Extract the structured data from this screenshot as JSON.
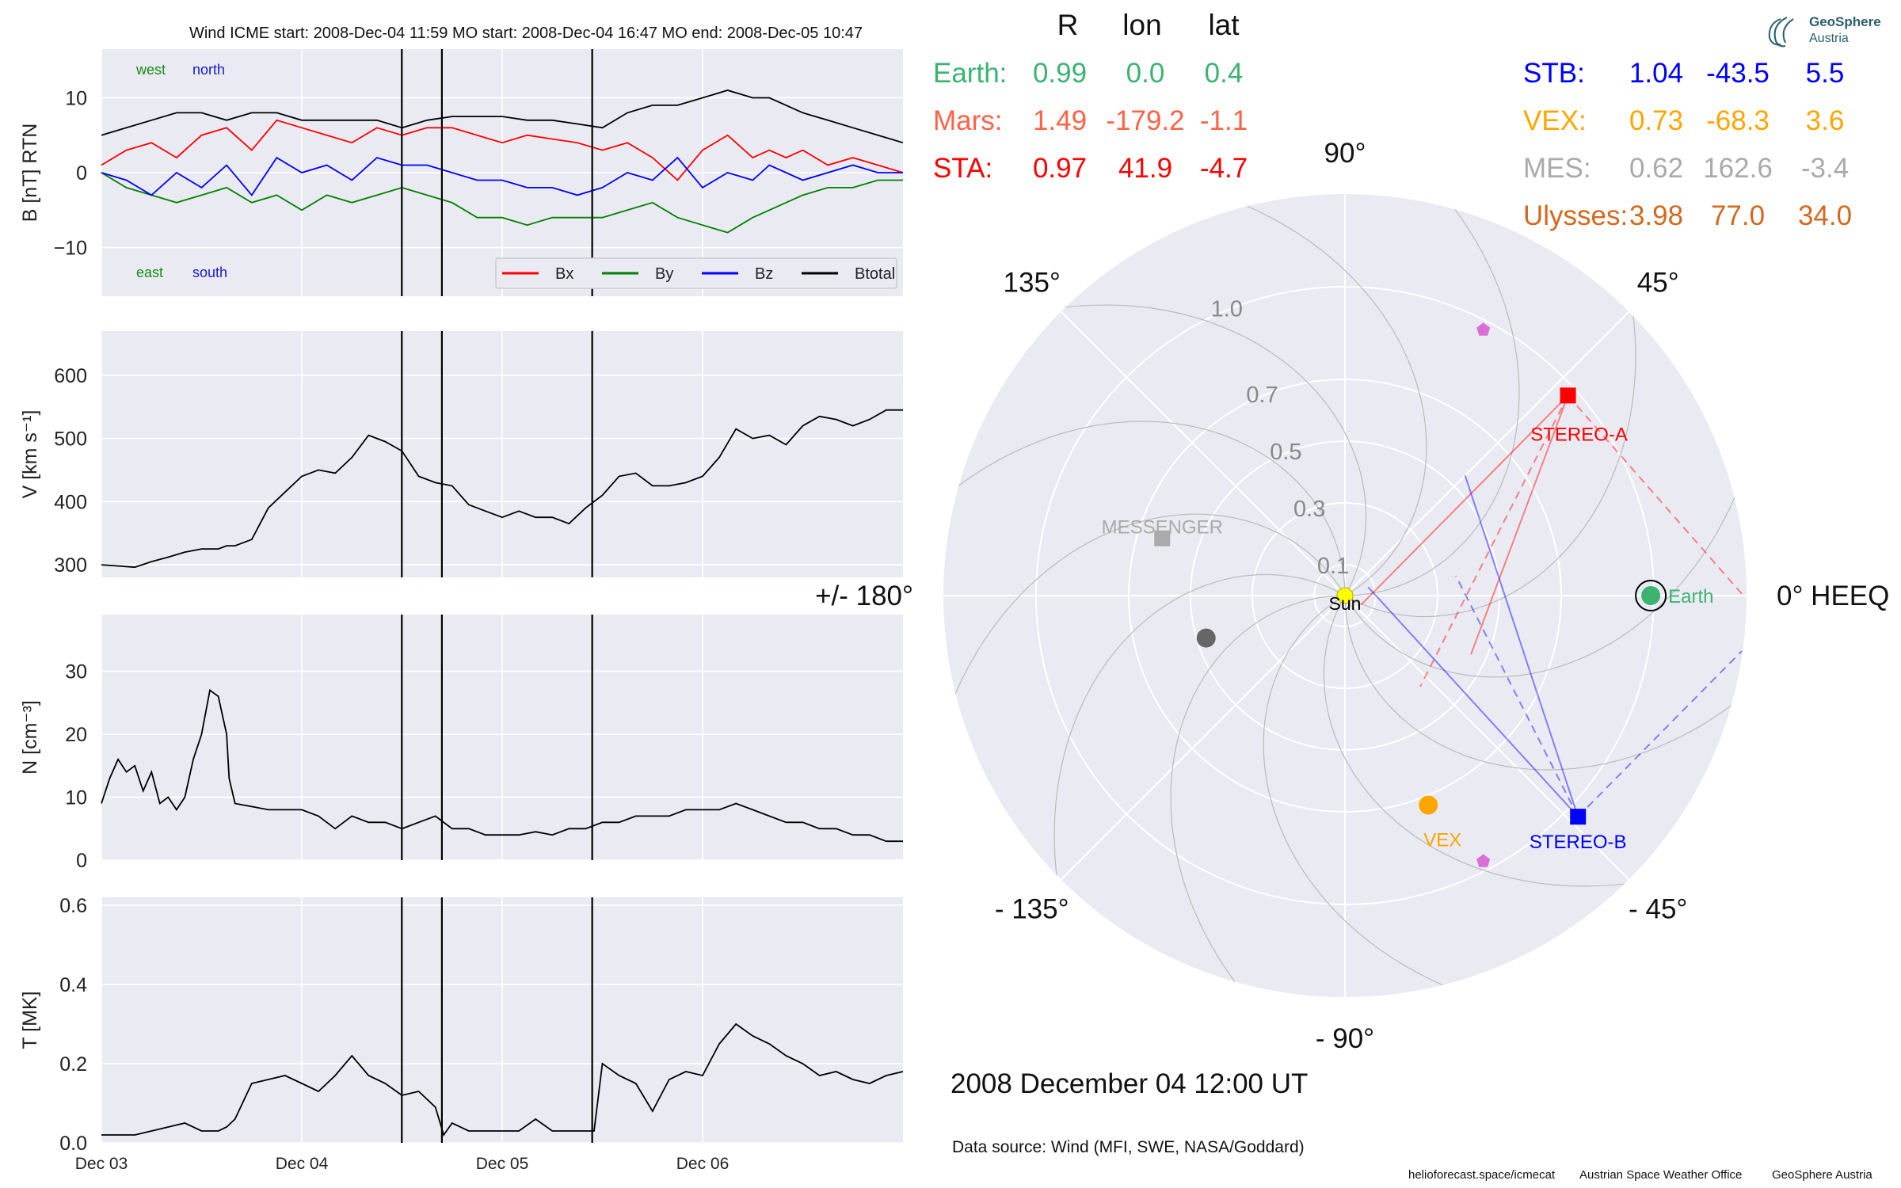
{
  "chart_data": [
    {
      "type": "line",
      "title": "Wind    ICME start: 2008-Dec-04 11:59   MO start: 2008-Dec-04 16:47   MO end: 2008-Dec-05 10:47",
      "ylabel": "B [nT] RTN",
      "ylim": [
        -16.5,
        16.5
      ],
      "yticks": [
        -10,
        0,
        10
      ],
      "ytick_labels": [
        "−10",
        "0",
        "10"
      ],
      "annotations": [
        {
          "text": "west",
          "color": "#1a8a1a",
          "pos": "top-left"
        },
        {
          "text": "north",
          "color": "#1a1acc",
          "pos": "top-left"
        },
        {
          "text": "east",
          "color": "#1a8a1a",
          "pos": "bottom-left"
        },
        {
          "text": "south",
          "color": "#1a1acc",
          "pos": "bottom-left"
        }
      ],
      "legend": {
        "placement": "bottom-right",
        "entries": [
          {
            "name": "Bx",
            "color": "#ff0000"
          },
          {
            "name": "By",
            "color": "#008000"
          },
          {
            "name": "Bz",
            "color": "#0000ff"
          },
          {
            "name": "Btotal",
            "color": "#000000"
          }
        ]
      },
      "event_lines_hours": [
        35.98,
        40.78,
        58.78
      ],
      "series": [
        {
          "name": "Btotal",
          "color": "#000000",
          "x": [
            0,
            3,
            6,
            9,
            12,
            15,
            18,
            21,
            24,
            27,
            30,
            33,
            36,
            39,
            42,
            45,
            48,
            51,
            54,
            57,
            60,
            63,
            66,
            69,
            72,
            75,
            78,
            80,
            82,
            84,
            87,
            90,
            93,
            96
          ],
          "y": [
            5,
            6,
            7,
            8,
            8,
            7,
            8,
            8,
            7,
            7,
            7,
            7,
            6,
            7,
            7.5,
            7.5,
            7.5,
            7,
            7,
            6.5,
            6,
            8,
            9,
            9,
            10,
            11,
            10,
            10,
            9,
            8,
            7,
            6,
            5,
            4
          ]
        },
        {
          "name": "Bx",
          "color": "#ff0000",
          "x": [
            0,
            3,
            6,
            9,
            12,
            15,
            18,
            21,
            24,
            27,
            30,
            33,
            36,
            39,
            42,
            45,
            48,
            51,
            54,
            57,
            60,
            63,
            66,
            69,
            72,
            75,
            78,
            80,
            82,
            84,
            87,
            90,
            93,
            96
          ],
          "y": [
            1,
            3,
            4,
            2,
            5,
            6,
            3,
            7,
            6,
            5,
            4,
            6,
            5,
            6,
            6,
            5,
            4,
            5,
            4.5,
            4,
            3,
            4,
            2,
            -1,
            3,
            5,
            2,
            3,
            2,
            3,
            1,
            2,
            1,
            0
          ]
        },
        {
          "name": "By",
          "color": "#008000",
          "x": [
            0,
            3,
            6,
            9,
            12,
            15,
            18,
            21,
            24,
            27,
            30,
            33,
            36,
            39,
            42,
            45,
            48,
            51,
            54,
            57,
            60,
            63,
            66,
            69,
            72,
            75,
            78,
            80,
            82,
            84,
            87,
            90,
            93,
            96
          ],
          "y": [
            0,
            -2,
            -3,
            -4,
            -3,
            -2,
            -4,
            -3,
            -5,
            -3,
            -4,
            -3,
            -2,
            -3,
            -4,
            -6,
            -6,
            -7,
            -6,
            -6,
            -6,
            -5,
            -4,
            -6,
            -7,
            -8,
            -6,
            -5,
            -4,
            -3,
            -2,
            -2,
            -1,
            -1
          ]
        },
        {
          "name": "Bz",
          "color": "#0000ff",
          "x": [
            0,
            3,
            6,
            9,
            12,
            15,
            18,
            21,
            24,
            27,
            30,
            33,
            36,
            39,
            42,
            45,
            48,
            51,
            54,
            57,
            60,
            63,
            66,
            69,
            72,
            75,
            78,
            80,
            82,
            84,
            87,
            90,
            93,
            96
          ],
          "y": [
            0,
            -1,
            -3,
            0,
            -2,
            1,
            -3,
            2,
            0,
            1,
            -1,
            2,
            1,
            1,
            0,
            -1,
            -1,
            -2,
            -2,
            -3,
            -2,
            0,
            -1,
            2,
            -2,
            0,
            -1,
            1,
            0,
            -1,
            0,
            1,
            0,
            0
          ]
        }
      ]
    },
    {
      "type": "line",
      "ylabel": "V [km s⁻¹]",
      "ylim": [
        280,
        670
      ],
      "yticks": [
        300,
        400,
        500,
        600
      ],
      "ytick_labels": [
        "300",
        "400",
        "500",
        "600"
      ],
      "event_lines_hours": [
        35.98,
        40.78,
        58.78
      ],
      "series": [
        {
          "name": "V",
          "color": "#000000",
          "x": [
            0,
            2,
            4,
            6,
            8,
            10,
            12,
            14,
            15,
            16,
            18,
            20,
            22,
            24,
            26,
            28,
            30,
            32,
            34,
            36,
            38,
            40,
            42,
            44,
            46,
            48,
            50,
            52,
            54,
            56,
            58,
            60,
            62,
            64,
            66,
            68,
            70,
            72,
            74,
            76,
            78,
            80,
            82,
            84,
            86,
            88,
            90,
            92,
            94,
            96
          ],
          "y": [
            300,
            298,
            296,
            305,
            312,
            320,
            325,
            325,
            330,
            330,
            340,
            390,
            415,
            440,
            450,
            445,
            470,
            505,
            495,
            480,
            440,
            430,
            425,
            395,
            385,
            375,
            385,
            375,
            375,
            365,
            390,
            410,
            440,
            445,
            425,
            425,
            430,
            440,
            470,
            515,
            500,
            505,
            490,
            520,
            535,
            530,
            520,
            530,
            545,
            545
          ]
        }
      ]
    },
    {
      "type": "line",
      "ylabel": "N [cm⁻³]",
      "ylim": [
        0,
        39
      ],
      "yticks": [
        0,
        10,
        20,
        30
      ],
      "ytick_labels": [
        "0",
        "10",
        "20",
        "30"
      ],
      "event_lines_hours": [
        35.98,
        40.78,
        58.78
      ],
      "series": [
        {
          "name": "N",
          "color": "#000000",
          "x": [
            0,
            1,
            2,
            3,
            4,
            5,
            6,
            7,
            8,
            9,
            10,
            11,
            12,
            13,
            14,
            15,
            15.3,
            16,
            18,
            20,
            22,
            24,
            26,
            28,
            30,
            32,
            34,
            36,
            38,
            40,
            42,
            44,
            46,
            48,
            50,
            52,
            54,
            56,
            58,
            60,
            62,
            64,
            66,
            68,
            70,
            72,
            74,
            76,
            78,
            80,
            82,
            84,
            86,
            88,
            90,
            92,
            94,
            96
          ],
          "y": [
            9,
            13,
            16,
            14,
            15,
            11,
            14,
            9,
            10,
            8,
            10,
            16,
            20,
            27,
            26,
            20,
            13,
            9,
            8.5,
            8,
            8,
            8,
            7,
            5,
            7,
            6,
            6,
            5,
            6,
            7,
            5,
            5,
            4,
            4,
            4,
            4.5,
            4,
            5,
            5,
            6,
            6,
            7,
            7,
            7,
            8,
            8,
            8,
            9,
            8,
            7,
            6,
            6,
            5,
            5,
            4,
            4,
            3,
            3
          ]
        }
      ]
    },
    {
      "type": "line",
      "xlabel": "",
      "ylabel": "T [MK]",
      "ylim": [
        0,
        0.62
      ],
      "yticks": [
        0.0,
        0.2,
        0.4,
        0.6
      ],
      "ytick_labels": [
        "0.0",
        "0.2",
        "0.4",
        "0.6"
      ],
      "xticks_hours": [
        0,
        24,
        48,
        72
      ],
      "xtick_labels": [
        "Dec 03",
        "Dec 04",
        "Dec 05",
        "Dec 06"
      ],
      "xlim_hours": [
        0,
        96
      ],
      "event_lines_hours": [
        35.98,
        40.78,
        58.78
      ],
      "series": [
        {
          "name": "T",
          "color": "#000000",
          "x": [
            0,
            2,
            4,
            6,
            8,
            10,
            12,
            14,
            15,
            16,
            18,
            20,
            22,
            24,
            26,
            28,
            30,
            32,
            34,
            36,
            38,
            40,
            41,
            42,
            44,
            46,
            48,
            50,
            52,
            54,
            56,
            58,
            59,
            60,
            62,
            64,
            66,
            68,
            70,
            72,
            74,
            76,
            78,
            80,
            82,
            84,
            86,
            88,
            90,
            92,
            94,
            96
          ],
          "y": [
            0.02,
            0.02,
            0.02,
            0.03,
            0.04,
            0.05,
            0.03,
            0.03,
            0.04,
            0.06,
            0.15,
            0.16,
            0.17,
            0.15,
            0.13,
            0.17,
            0.22,
            0.17,
            0.15,
            0.12,
            0.13,
            0.09,
            0.02,
            0.05,
            0.03,
            0.03,
            0.03,
            0.03,
            0.06,
            0.03,
            0.03,
            0.03,
            0.03,
            0.2,
            0.17,
            0.15,
            0.08,
            0.16,
            0.18,
            0.17,
            0.25,
            0.3,
            0.27,
            0.25,
            0.22,
            0.2,
            0.17,
            0.18,
            0.16,
            0.15,
            0.17,
            0.18
          ]
        }
      ]
    },
    {
      "type": "scatter",
      "subtype": "polar",
      "radial_label": "HEEQ",
      "r_max": 1.3,
      "rticks": [
        0.1,
        0.3,
        0.5,
        0.7,
        1.0
      ],
      "rtick_labels": [
        "0.1",
        "0.3",
        "0.5",
        "0.7",
        "1.0"
      ],
      "angle_labels": [
        {
          "angle": 0,
          "text": "0° HEEQ"
        },
        {
          "angle": 45,
          "text": "45°"
        },
        {
          "angle": 90,
          "text": "90°"
        },
        {
          "angle": 135,
          "text": "135°"
        },
        {
          "angle": 180,
          "text": "+/- 180°"
        },
        {
          "angle": -135,
          "text": "- 135°"
        },
        {
          "angle": -90,
          "text": "- 90°"
        },
        {
          "angle": -45,
          "text": "- 45°"
        }
      ],
      "header": {
        "R": "R",
        "lon": "lon",
        "lat": "lat"
      },
      "bodies": [
        {
          "name": "Earth",
          "R": "0.99",
          "lon": "0.0",
          "lat": "0.4",
          "color": "#3cb371",
          "r": 0.99,
          "theta": 0.0,
          "marker": "circle",
          "label": "Earth"
        },
        {
          "name": "Mars",
          "R": "1.49",
          "lon": "-179.2",
          "lat": "-1.1",
          "color": "#ff6347"
        },
        {
          "name": "STA",
          "R": "0.97",
          "lon": "41.9",
          "lat": "-4.7",
          "color": "#ff0000",
          "r": 0.97,
          "theta": 41.9,
          "marker": "square",
          "label": "STEREO-A"
        },
        {
          "name": "STB",
          "R": "1.04",
          "lon": "-43.5",
          "lat": "5.5",
          "color": "#0000ff",
          "r": 1.04,
          "theta": -43.5,
          "marker": "square",
          "label": "STEREO-B"
        },
        {
          "name": "VEX",
          "R": "0.73",
          "lon": "-68.3",
          "lat": "3.6",
          "color": "#ffa500",
          "r": 0.73,
          "theta": -68.3,
          "marker": "circle",
          "label": "VEX"
        },
        {
          "name": "MES",
          "R": "0.62",
          "lon": "162.6",
          "lat": "-3.4",
          "color": "#aaaaaa",
          "r": 0.62,
          "theta": 162.6,
          "marker": "square",
          "label": "MESSENGER"
        },
        {
          "name": "Ulysses",
          "R": "3.98",
          "lon": "77.0",
          "lat": "34.0",
          "color": "#d2691e"
        }
      ],
      "extra_markers": [
        {
          "name": "sun",
          "r": 0.0,
          "theta": 0.0,
          "color": "#ffff00",
          "label": "Sun",
          "marker": "circle"
        },
        {
          "name": "dark-planet",
          "r": 0.47,
          "theta": -163,
          "color": "#666666",
          "marker": "circle"
        },
        {
          "name": "pentagon-upper",
          "r": 0.97,
          "theta": 62.5,
          "color": "#da70d6",
          "marker": "pentagon"
        },
        {
          "name": "pentagon-lower",
          "r": 0.97,
          "theta": -62.5,
          "color": "#da70d6",
          "marker": "pentagon"
        }
      ],
      "date": "2008 December 04  12:00 UT",
      "source": "Data source: Wind (MFI, SWE, NASA/Goddard)"
    }
  ],
  "footer": {
    "site": "helioforecast.space/icmecat",
    "office": "Austrian Space Weather Office",
    "org": "GeoSphere Austria"
  },
  "logo": {
    "line1": "GeoSphere",
    "line2": "Austria"
  }
}
